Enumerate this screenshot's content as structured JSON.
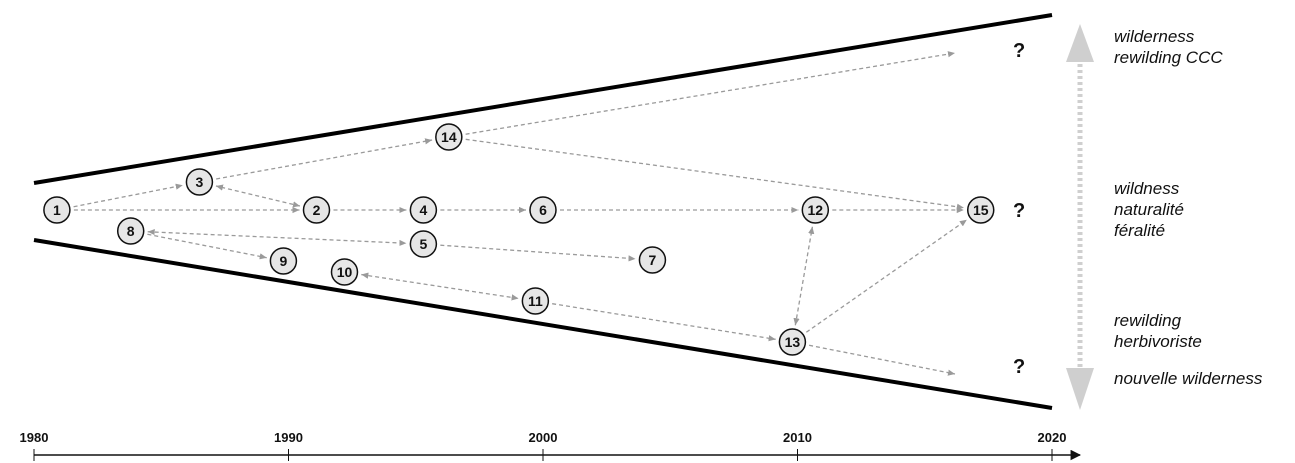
{
  "nodes": [
    {
      "id": "1",
      "year": 1980.9
    },
    {
      "id": "2",
      "year": 1991.1
    },
    {
      "id": "3",
      "year": 1986.5
    },
    {
      "id": "4",
      "year": 1995.3
    },
    {
      "id": "5",
      "year": 1995.3
    },
    {
      "id": "6",
      "year": 2000.0
    },
    {
      "id": "7",
      "year": 2004.3
    },
    {
      "id": "8",
      "year": 1983.8
    },
    {
      "id": "9",
      "year": 1989.8
    },
    {
      "id": "10",
      "year": 1992.2
    },
    {
      "id": "11",
      "year": 1999.7
    },
    {
      "id": "12",
      "year": 2010.7
    },
    {
      "id": "13",
      "year": 2009.8
    },
    {
      "id": "14",
      "year": 1996.3
    },
    {
      "id": "15",
      "year": 2017.2
    }
  ],
  "links": [
    {
      "from": "1",
      "to": "3"
    },
    {
      "from": "1",
      "to": "2"
    },
    {
      "from": "2",
      "to": "3"
    },
    {
      "from": "3",
      "to": "14"
    },
    {
      "from": "2",
      "to": "4"
    },
    {
      "from": "4",
      "to": "6"
    },
    {
      "from": "6",
      "to": "12"
    },
    {
      "from": "12",
      "to": "15"
    },
    {
      "from": "14",
      "to": "15"
    },
    {
      "from": "14",
      "to": "?top"
    },
    {
      "from": "8",
      "to": "5"
    },
    {
      "from": "5",
      "to": "7"
    },
    {
      "from": "8",
      "to": "9"
    },
    {
      "from": "10",
      "to": "11"
    },
    {
      "from": "11",
      "to": "13"
    },
    {
      "from": "13",
      "to": "12"
    },
    {
      "from": "13",
      "to": "15"
    },
    {
      "from": "13",
      "to": "?bottom"
    }
  ],
  "question_marks": [
    "?",
    "?",
    "?"
  ],
  "axis": {
    "years": [
      "1980",
      "1990",
      "2000",
      "2010",
      "2020"
    ]
  },
  "labels": {
    "top": [
      "wilderness",
      "rewilding CCC"
    ],
    "middle": [
      "wildness",
      "naturalité",
      "féralité"
    ],
    "lower": [
      "rewilding",
      "herbivoriste"
    ],
    "bottom": [
      "nouvelle wilderness"
    ]
  },
  "colors": {
    "funnel": "#000000",
    "arrow": "#9a9a9a",
    "node_fill": "#e6e6e6",
    "axis_arrow": "#cfcfcf"
  }
}
